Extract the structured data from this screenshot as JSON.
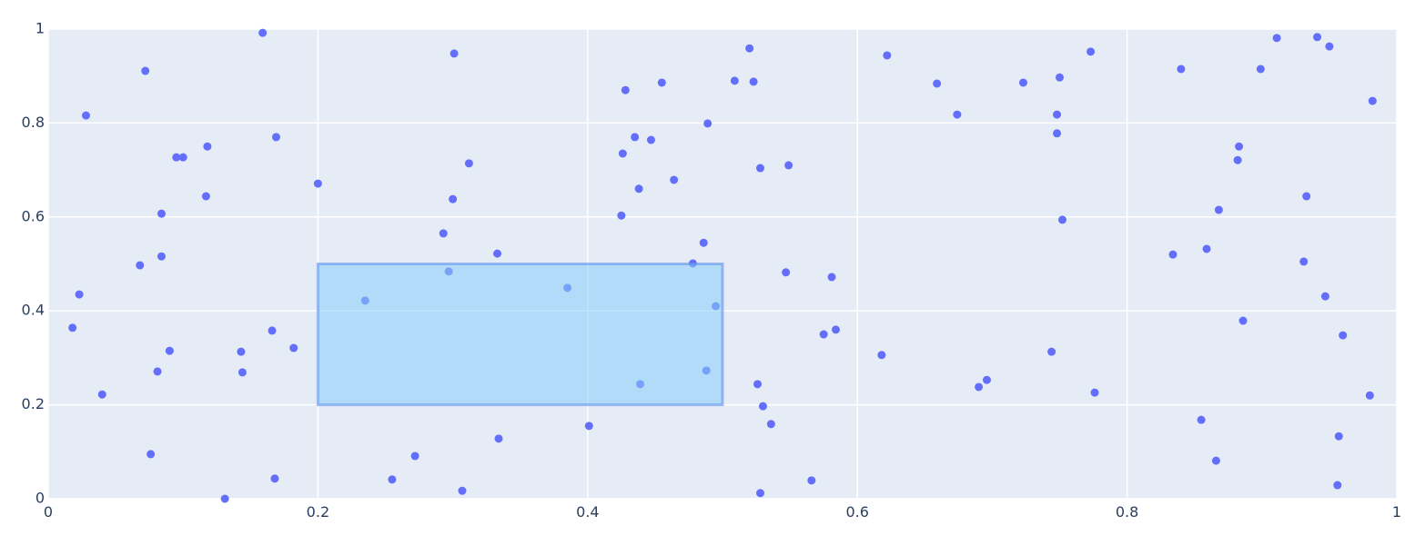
{
  "chart_data": {
    "type": "scatter",
    "color": "#636efa",
    "grid": true,
    "xlim": [
      0,
      1
    ],
    "ylim": [
      0,
      1
    ],
    "xticks": [
      0,
      0.2,
      0.4,
      0.6,
      0.8,
      1
    ],
    "yticks": [
      0,
      0.2,
      0.4,
      0.6,
      0.8,
      1
    ],
    "selection": {
      "x": [
        0.2,
        0.5
      ],
      "y": [
        0.2,
        0.5
      ]
    },
    "x": [
      0.159,
      0.072,
      0.028,
      0.169,
      0.118,
      0.095,
      0.1,
      0.117,
      0.084,
      0.2,
      0.068,
      0.084,
      0.023,
      0.018,
      0.166,
      0.143,
      0.09,
      0.182,
      0.081,
      0.144,
      0.04,
      0.076,
      0.168,
      0.131,
      0.301,
      0.312,
      0.3,
      0.293,
      0.333,
      0.297,
      0.235,
      0.385,
      0.272,
      0.334,
      0.307,
      0.255,
      0.401,
      0.428,
      0.455,
      0.435,
      0.447,
      0.426,
      0.438,
      0.464,
      0.425,
      0.489,
      0.486,
      0.478,
      0.495,
      0.488,
      0.439,
      0.52,
      0.509,
      0.523,
      0.528,
      0.549,
      0.547,
      0.526,
      0.53,
      0.536,
      0.528,
      0.566,
      0.575,
      0.584,
      0.581,
      0.622,
      0.618,
      0.659,
      0.674,
      0.723,
      0.75,
      0.748,
      0.748,
      0.752,
      0.773,
      0.744,
      0.696,
      0.69,
      0.776,
      0.84,
      0.911,
      0.941,
      0.95,
      0.899,
      0.883,
      0.882,
      0.933,
      0.868,
      0.834,
      0.859,
      0.931,
      0.947,
      0.886,
      0.96,
      0.982,
      0.98,
      0.855,
      0.957,
      0.866,
      0.956
    ],
    "y": [
      0.992,
      0.911,
      0.816,
      0.77,
      0.75,
      0.727,
      0.727,
      0.644,
      0.607,
      0.671,
      0.497,
      0.516,
      0.435,
      0.364,
      0.358,
      0.313,
      0.315,
      0.321,
      0.271,
      0.269,
      0.222,
      0.095,
      0.043,
      0.0,
      0.948,
      0.714,
      0.638,
      0.565,
      0.522,
      0.484,
      0.422,
      0.449,
      0.091,
      0.128,
      0.017,
      0.041,
      0.155,
      0.87,
      0.886,
      0.77,
      0.764,
      0.735,
      0.66,
      0.679,
      0.603,
      0.799,
      0.545,
      0.501,
      0.41,
      0.273,
      0.244,
      0.959,
      0.89,
      0.888,
      0.704,
      0.71,
      0.482,
      0.244,
      0.197,
      0.159,
      0.012,
      0.039,
      0.35,
      0.36,
      0.472,
      0.944,
      0.306,
      0.884,
      0.818,
      0.886,
      0.897,
      0.818,
      0.778,
      0.594,
      0.952,
      0.313,
      0.253,
      0.238,
      0.226,
      0.915,
      0.981,
      0.983,
      0.963,
      0.915,
      0.75,
      0.721,
      0.644,
      0.615,
      0.52,
      0.532,
      0.505,
      0.431,
      0.379,
      0.348,
      0.847,
      0.22,
      0.168,
      0.133,
      0.081,
      0.029
    ]
  }
}
